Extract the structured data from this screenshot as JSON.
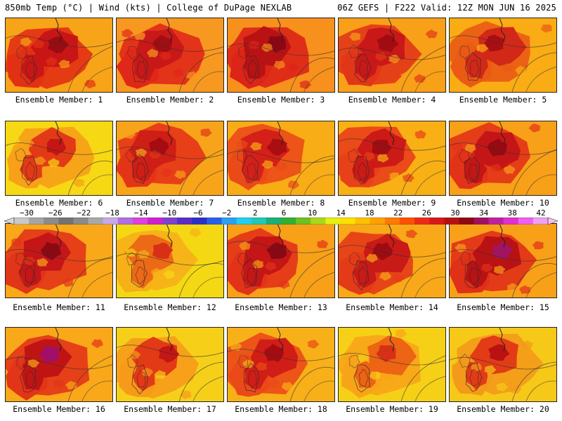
{
  "header": {
    "left": "850mb Temp (°C) | Wind (kts) | College of DuPage NEXLAB",
    "right": "06Z GEFS | F222 Valid: 12Z MON JUN 16 2025"
  },
  "colorbar": {
    "labels": [
      "-30",
      "-26",
      "-22",
      "-18",
      "-14",
      "-10",
      "-6",
      "-2",
      "2",
      "6",
      "10",
      "14",
      "18",
      "22",
      "26",
      "30",
      "34",
      "38",
      "42"
    ],
    "colors": [
      "#c8c8c8",
      "#a5a5a5",
      "#8c8c8c",
      "#737373",
      "#8a8a8a",
      "#a8a8a8",
      "#c8a8e8",
      "#b070e0",
      "#e040e0",
      "#d020d0",
      "#8040d0",
      "#5a2dc8",
      "#2a30c8",
      "#2860e8",
      "#2aa0f0",
      "#20d0f0",
      "#20c8b8",
      "#18b078",
      "#30b030",
      "#70c020",
      "#a8d818",
      "#e8f010",
      "#ffe000",
      "#ffc000",
      "#ffa000",
      "#ff7a00",
      "#ff5000",
      "#f02818",
      "#d81818",
      "#b81010",
      "#900810",
      "#a01060",
      "#c020a0",
      "#e030d0",
      "#f060f0",
      "#f0a0f0"
    ]
  },
  "panels": [
    {
      "label": "Ensemble Member: 1",
      "bg": "#f8a418",
      "warm": "#e23014",
      "hot": "#c81616",
      "core": "#9a0c12"
    },
    {
      "label": "Ensemble Member: 2",
      "bg": "#f79820",
      "warm": "#e02818",
      "hot": "#c81818",
      "core": "#a00e12"
    },
    {
      "label": "Ensemble Member: 3",
      "bg": "#f7901c",
      "warm": "#dc2418",
      "hot": "#b81214",
      "core": "#8a0814"
    },
    {
      "label": "Ensemble Member: 4",
      "bg": "#f8a018",
      "warm": "#e23618",
      "hot": "#c81818",
      "core": "#a00c12"
    },
    {
      "label": "Ensemble Member: 5",
      "bg": "#f9ac14",
      "warm": "#ea5a14",
      "hot": "#d22818",
      "core": "#a80e12"
    },
    {
      "label": "Ensemble Member: 6",
      "bg": "#f6d814",
      "warm": "#f7a018",
      "hot": "#e23a16",
      "core": "#c41614"
    },
    {
      "label": "Ensemble Member: 7",
      "bg": "#f8a41a",
      "warm": "#e43418",
      "hot": "#ce1e16",
      "core": "#a40c12"
    },
    {
      "label": "Ensemble Member: 8",
      "bg": "#f8ac16",
      "warm": "#ea4a18",
      "hot": "#d42018",
      "core": "#a80e12"
    },
    {
      "label": "Ensemble Member: 9",
      "bg": "#f8b014",
      "warm": "#e84018",
      "hot": "#cc1a16",
      "core": "#a00c12"
    },
    {
      "label": "Ensemble Member: 10",
      "bg": "#f8a018",
      "warm": "#e23218",
      "hot": "#c41616",
      "core": "#960a12"
    },
    {
      "label": "Ensemble Member: 11",
      "bg": "#f8a818",
      "warm": "#e23418",
      "hot": "#c41618",
      "core": "#8a0a14"
    },
    {
      "label": "Ensemble Member: 12",
      "bg": "#f4d814",
      "warm": "#f7b018",
      "hot": "#ec6a16",
      "core": "#d83016"
    },
    {
      "label": "Ensemble Member: 13",
      "bg": "#f8a018",
      "warm": "#e23218",
      "hot": "#c41616",
      "core": "#8a0814"
    },
    {
      "label": "Ensemble Member: 14",
      "bg": "#f8a818",
      "warm": "#e43a18",
      "hot": "#c81a16",
      "core": "#9c0c12"
    },
    {
      "label": "Ensemble Member: 15",
      "bg": "#f8a018",
      "warm": "#e03018",
      "hot": "#b81214",
      "core": "#a01460"
    },
    {
      "label": "Ensemble Member: 16",
      "bg": "#f8a818",
      "warm": "#e23418",
      "hot": "#c01414",
      "core": "#a0106a"
    },
    {
      "label": "Ensemble Member: 17",
      "bg": "#f6d018",
      "warm": "#f79a1a",
      "hot": "#e23a16",
      "core": "#c41614"
    },
    {
      "label": "Ensemble Member: 18",
      "bg": "#f8b018",
      "warm": "#ea4a18",
      "hot": "#d01e16",
      "core": "#a40c12"
    },
    {
      "label": "Ensemble Member: 19",
      "bg": "#f6d016",
      "warm": "#f8a418",
      "hot": "#ec6414",
      "core": "#d63016"
    },
    {
      "label": "Ensemble Member: 20",
      "bg": "#f6c818",
      "warm": "#f39a1a",
      "hot": "#e23c16",
      "core": "#b81214"
    }
  ]
}
